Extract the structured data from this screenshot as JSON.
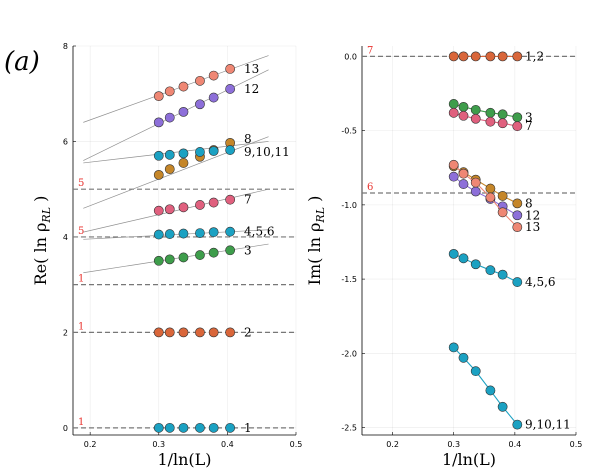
{
  "panel_label": "(a)",
  "colors": {
    "blue": "#1ba1c2",
    "orange": "#d9663a",
    "green": "#3e9d4b",
    "purple": "#8d6fd9",
    "gold": "#c58629",
    "pink": "#e0607e",
    "salmon": "#ef8774",
    "ref_line": "#777777",
    "fit_line": "#909090",
    "red_text": "#e8322e"
  },
  "chart_data": [
    {
      "type": "scatter",
      "xlabel": "1/ln(L)",
      "ylabel": "Re( ln ρ_RL )",
      "xlim": [
        0.175,
        0.5
      ],
      "ylim": [
        -0.15,
        8.0
      ],
      "xticks": [
        "0.2",
        "0.3",
        "0.4",
        "0.5"
      ],
      "yticks": [
        "0",
        "2",
        "4",
        "6",
        "8"
      ],
      "grid": true,
      "x": [
        0.3,
        0.316,
        0.336,
        0.36,
        0.38,
        0.404
      ],
      "reference_lines": [
        {
          "y": 0,
          "label": "1"
        },
        {
          "y": 2,
          "label": "1"
        },
        {
          "y": 3,
          "label": "1"
        },
        {
          "y": 4,
          "label": "5"
        },
        {
          "y": 5,
          "label": "5"
        }
      ],
      "fit_lines": [
        {
          "x": [
            0.19,
            0.46
          ],
          "y": [
            6.4,
            7.8
          ]
        },
        {
          "x": [
            0.19,
            0.46
          ],
          "y": [
            5.6,
            7.5
          ]
        },
        {
          "x": [
            0.19,
            0.46
          ],
          "y": [
            5.55,
            6.0
          ]
        },
        {
          "x": [
            0.19,
            0.46
          ],
          "y": [
            4.6,
            6.1
          ]
        },
        {
          "x": [
            0.19,
            0.46
          ],
          "y": [
            4.1,
            5.0
          ]
        },
        {
          "x": [
            0.19,
            0.46
          ],
          "y": [
            3.95,
            4.15
          ]
        },
        {
          "x": [
            0.19,
            0.46
          ],
          "y": [
            3.25,
            3.85
          ]
        }
      ],
      "series": [
        {
          "color": "blue",
          "label": "1",
          "values": [
            0,
            0,
            0,
            0,
            0,
            0
          ]
        },
        {
          "color": "orange",
          "label": "2",
          "values": [
            2,
            2,
            2,
            2,
            2,
            2
          ]
        },
        {
          "color": "green",
          "label": "3",
          "values": [
            3.5,
            3.53,
            3.57,
            3.62,
            3.67,
            3.72
          ]
        },
        {
          "color": "blue",
          "label": "4,5,6",
          "values": [
            4.05,
            4.06,
            4.07,
            4.08,
            4.1,
            4.11
          ]
        },
        {
          "color": "pink",
          "label": "7",
          "values": [
            4.55,
            4.58,
            4.62,
            4.67,
            4.72,
            4.78
          ]
        },
        {
          "color": "gold",
          "values": [
            5.3,
            5.42,
            5.55,
            5.68,
            5.82,
            5.97
          ]
        },
        {
          "color": "blue",
          "values": [
            5.7,
            5.72,
            5.75,
            5.78,
            5.8,
            5.82
          ]
        },
        {
          "color": "purple",
          "label": "12",
          "values": [
            6.4,
            6.5,
            6.62,
            6.78,
            6.92,
            7.1
          ]
        },
        {
          "color": "salmon",
          "label": "13",
          "values": [
            6.95,
            7.05,
            7.15,
            7.27,
            7.38,
            7.52
          ]
        }
      ],
      "extra_labels": [
        {
          "text": "8",
          "y": 6.05
        },
        {
          "text": "9,10,11",
          "y": 5.78
        }
      ]
    },
    {
      "type": "scatter",
      "xlabel": "1/ln(L)",
      "ylabel": "Im( ln ρ_RL )",
      "xlim": [
        0.15,
        0.5
      ],
      "ylim": [
        -2.55,
        0.07
      ],
      "xticks": [
        "0.2",
        "0.3",
        "0.4",
        "0.5"
      ],
      "yticks": [
        "0.0",
        "-0.5",
        "-1.0",
        "-1.5",
        "-2.0",
        "-2.5"
      ],
      "grid": true,
      "x": [
        0.3,
        0.316,
        0.336,
        0.36,
        0.38,
        0.404
      ],
      "reference_lines": [
        {
          "y": 0.0,
          "label": "7"
        },
        {
          "y": -0.92,
          "label": "6"
        }
      ],
      "series": [
        {
          "color": "orange",
          "label": "1,2",
          "values": [
            0,
            0,
            0,
            0,
            0,
            0
          ]
        },
        {
          "color": "green",
          "label": "3",
          "values": [
            -0.32,
            -0.34,
            -0.36,
            -0.38,
            -0.39,
            -0.41
          ]
        },
        {
          "color": "pink",
          "label": "7",
          "values": [
            -0.38,
            -0.4,
            -0.42,
            -0.44,
            -0.45,
            -0.47
          ]
        },
        {
          "color": "gold",
          "label": "8",
          "values": [
            -0.74,
            -0.78,
            -0.83,
            -0.89,
            -0.94,
            -0.99
          ]
        },
        {
          "color": "purple",
          "label": "12",
          "values": [
            -0.81,
            -0.86,
            -0.91,
            -0.96,
            -1.01,
            -1.07
          ]
        },
        {
          "color": "salmon",
          "label": "13",
          "values": [
            -0.73,
            -0.79,
            -0.85,
            -0.95,
            -1.05,
            -1.15
          ]
        },
        {
          "color": "blue",
          "label": "4,5,6",
          "values": [
            -1.33,
            -1.36,
            -1.4,
            -1.44,
            -1.47,
            -1.52
          ]
        },
        {
          "color": "blue",
          "label": "9,10,11",
          "values": [
            -1.96,
            -2.03,
            -2.12,
            -2.25,
            -2.36,
            -2.48
          ]
        }
      ]
    }
  ]
}
